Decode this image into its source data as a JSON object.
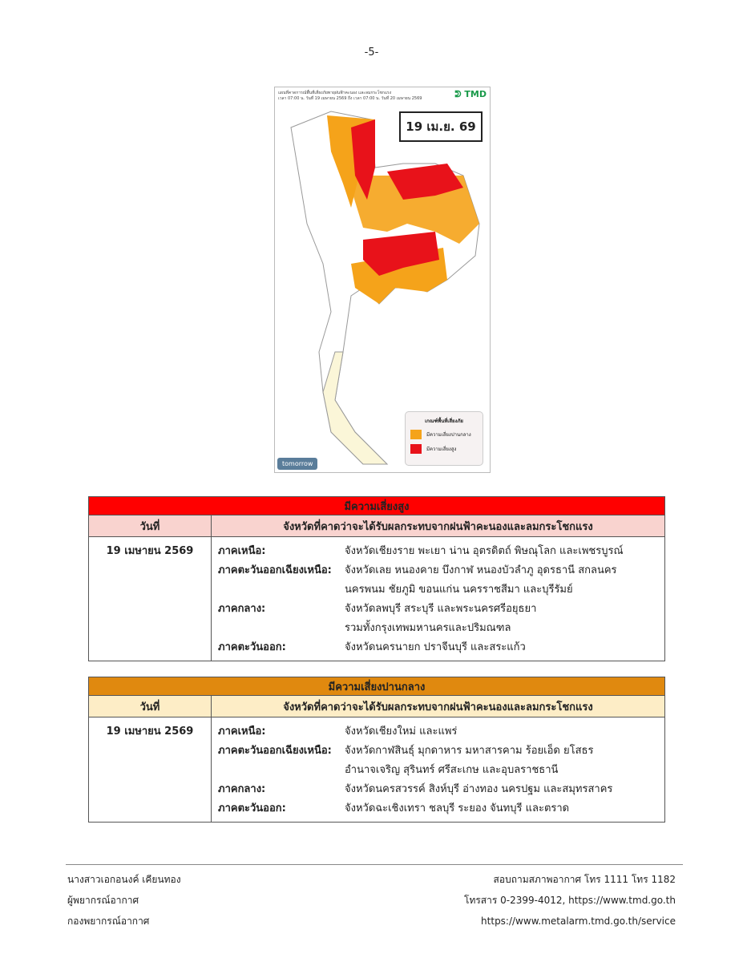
{
  "page_number": "-5-",
  "map": {
    "caption_line1": "แผนที่คาดการณ์พื้นที่เสี่ยงภัยพายุฝนฟ้าคะนอง และลมกระโชกแรง",
    "caption_line2": "เวลา 07:00 น. วันที่ 19 เมษายน 2569 ถึง เวลา 07:00 น. วันที่ 20 เมษายน 2569",
    "logo_text": "TMD",
    "date_label": "19 เม.ย. 69",
    "legend_title": "เกณฑ์พื้นที่เสี่ยงภัย",
    "legend_items": [
      {
        "label": "มีความเสี่ยงปานกลาง",
        "color": "#f5a31a"
      },
      {
        "label": "มีความเสี่ยงสูง",
        "color": "#e8121a"
      }
    ],
    "badge": "tomorrow"
  },
  "high_risk": {
    "title": "มีความเสี่ยงสูง",
    "color": "#ff0000",
    "header_bg": "#f9d3cf",
    "col_date": "วันที่",
    "col_provinces": "จังหวัดที่คาดว่าจะได้รับผลกระทบจากฝนฟ้าคะนองและลมกระโชกแรง",
    "date": "19 เมษายน 2569",
    "rows": [
      {
        "region": "ภาคเหนือ:",
        "text": "จังหวัดเชียงราย พะเยา น่าน อุตรดิตถ์ พิษณุโลก และเพชรบูรณ์"
      },
      {
        "region": "ภาคตะวันออกเฉียงเหนือ:",
        "text": "จังหวัดเลย หนองคาย บึงกาฬ หนองบัวลำภู อุดรธานี สกลนคร"
      },
      {
        "region": "",
        "text": "นครพนม ชัยภูมิ ขอนแก่น นครราชสีมา และบุรีรัมย์"
      },
      {
        "region": "ภาคกลาง:",
        "text": "จังหวัดลพบุรี สระบุรี และพระนครศรีอยุธยา"
      },
      {
        "region": "",
        "text": "รวมทั้งกรุงเทพมหานครและปริมณฑล"
      },
      {
        "region": "ภาคตะวันออก:",
        "text": "จังหวัดนครนายก ปราจีนบุรี และสระแก้ว"
      }
    ]
  },
  "medium_risk": {
    "title": "มีความเสี่ยงปานกลาง",
    "color": "#e0890f",
    "header_bg": "#fdedc6",
    "col_date": "วันที่",
    "col_provinces": "จังหวัดที่คาดว่าจะได้รับผลกระทบจากฝนฟ้าคะนองและลมกระโชกแรง",
    "date": "19 เมษายน 2569",
    "rows": [
      {
        "region": "ภาคเหนือ:",
        "text": "จังหวัดเชียงใหม่ และแพร่"
      },
      {
        "region": "ภาคตะวันออกเฉียงเหนือ:",
        "text": "จังหวัดกาฬสินธุ์ มุกดาหาร มหาสารคาม ร้อยเอ็ด ยโสธร"
      },
      {
        "region": "",
        "text": "อำนาจเจริญ สุรินทร์ ศรีสะเกษ และอุบลราชธานี"
      },
      {
        "region": "ภาคกลาง:",
        "text": "จังหวัดนครสวรรค์ สิงห์บุรี อ่างทอง นครปฐม และสมุทรสาคร"
      },
      {
        "region": "ภาคตะวันออก:",
        "text": "จังหวัดฉะเชิงเทรา ชลบุรี ระยอง จันทบุรี และตราด"
      }
    ]
  },
  "footer": {
    "left": [
      "นางสาวเอกอนงค์ เคียนทอง",
      "ผู้พยากรณ์อากาศ",
      "กองพยากรณ์อากาศ"
    ],
    "right": [
      "สอบถามสภาพอากาศ โทร 1111 โทร 1182",
      "โทรสาร 0-2399-4012, https://www.tmd.go.th",
      "https://www.metalarm.tmd.go.th/service"
    ]
  }
}
